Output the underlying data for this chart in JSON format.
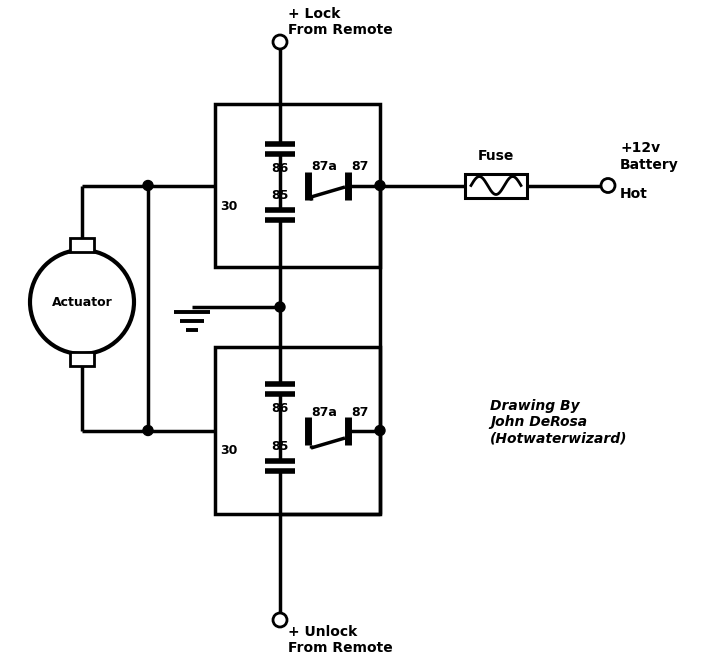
{
  "bg_color": "#ffffff",
  "lc": "#000000",
  "lw": 2.5,
  "text_lock": "+ Lock\nFrom Remote",
  "text_unlock": "+ Unlock\nFrom Remote",
  "text_fuse": "Fuse",
  "text_battery": "+12v\nBattery",
  "text_hot": "Hot",
  "text_actuator": "Actuator",
  "text_drawing": "Drawing By\nJohn DeRosa\n(Hotwaterwizard)",
  "fs": 10,
  "fs_sm": 9
}
